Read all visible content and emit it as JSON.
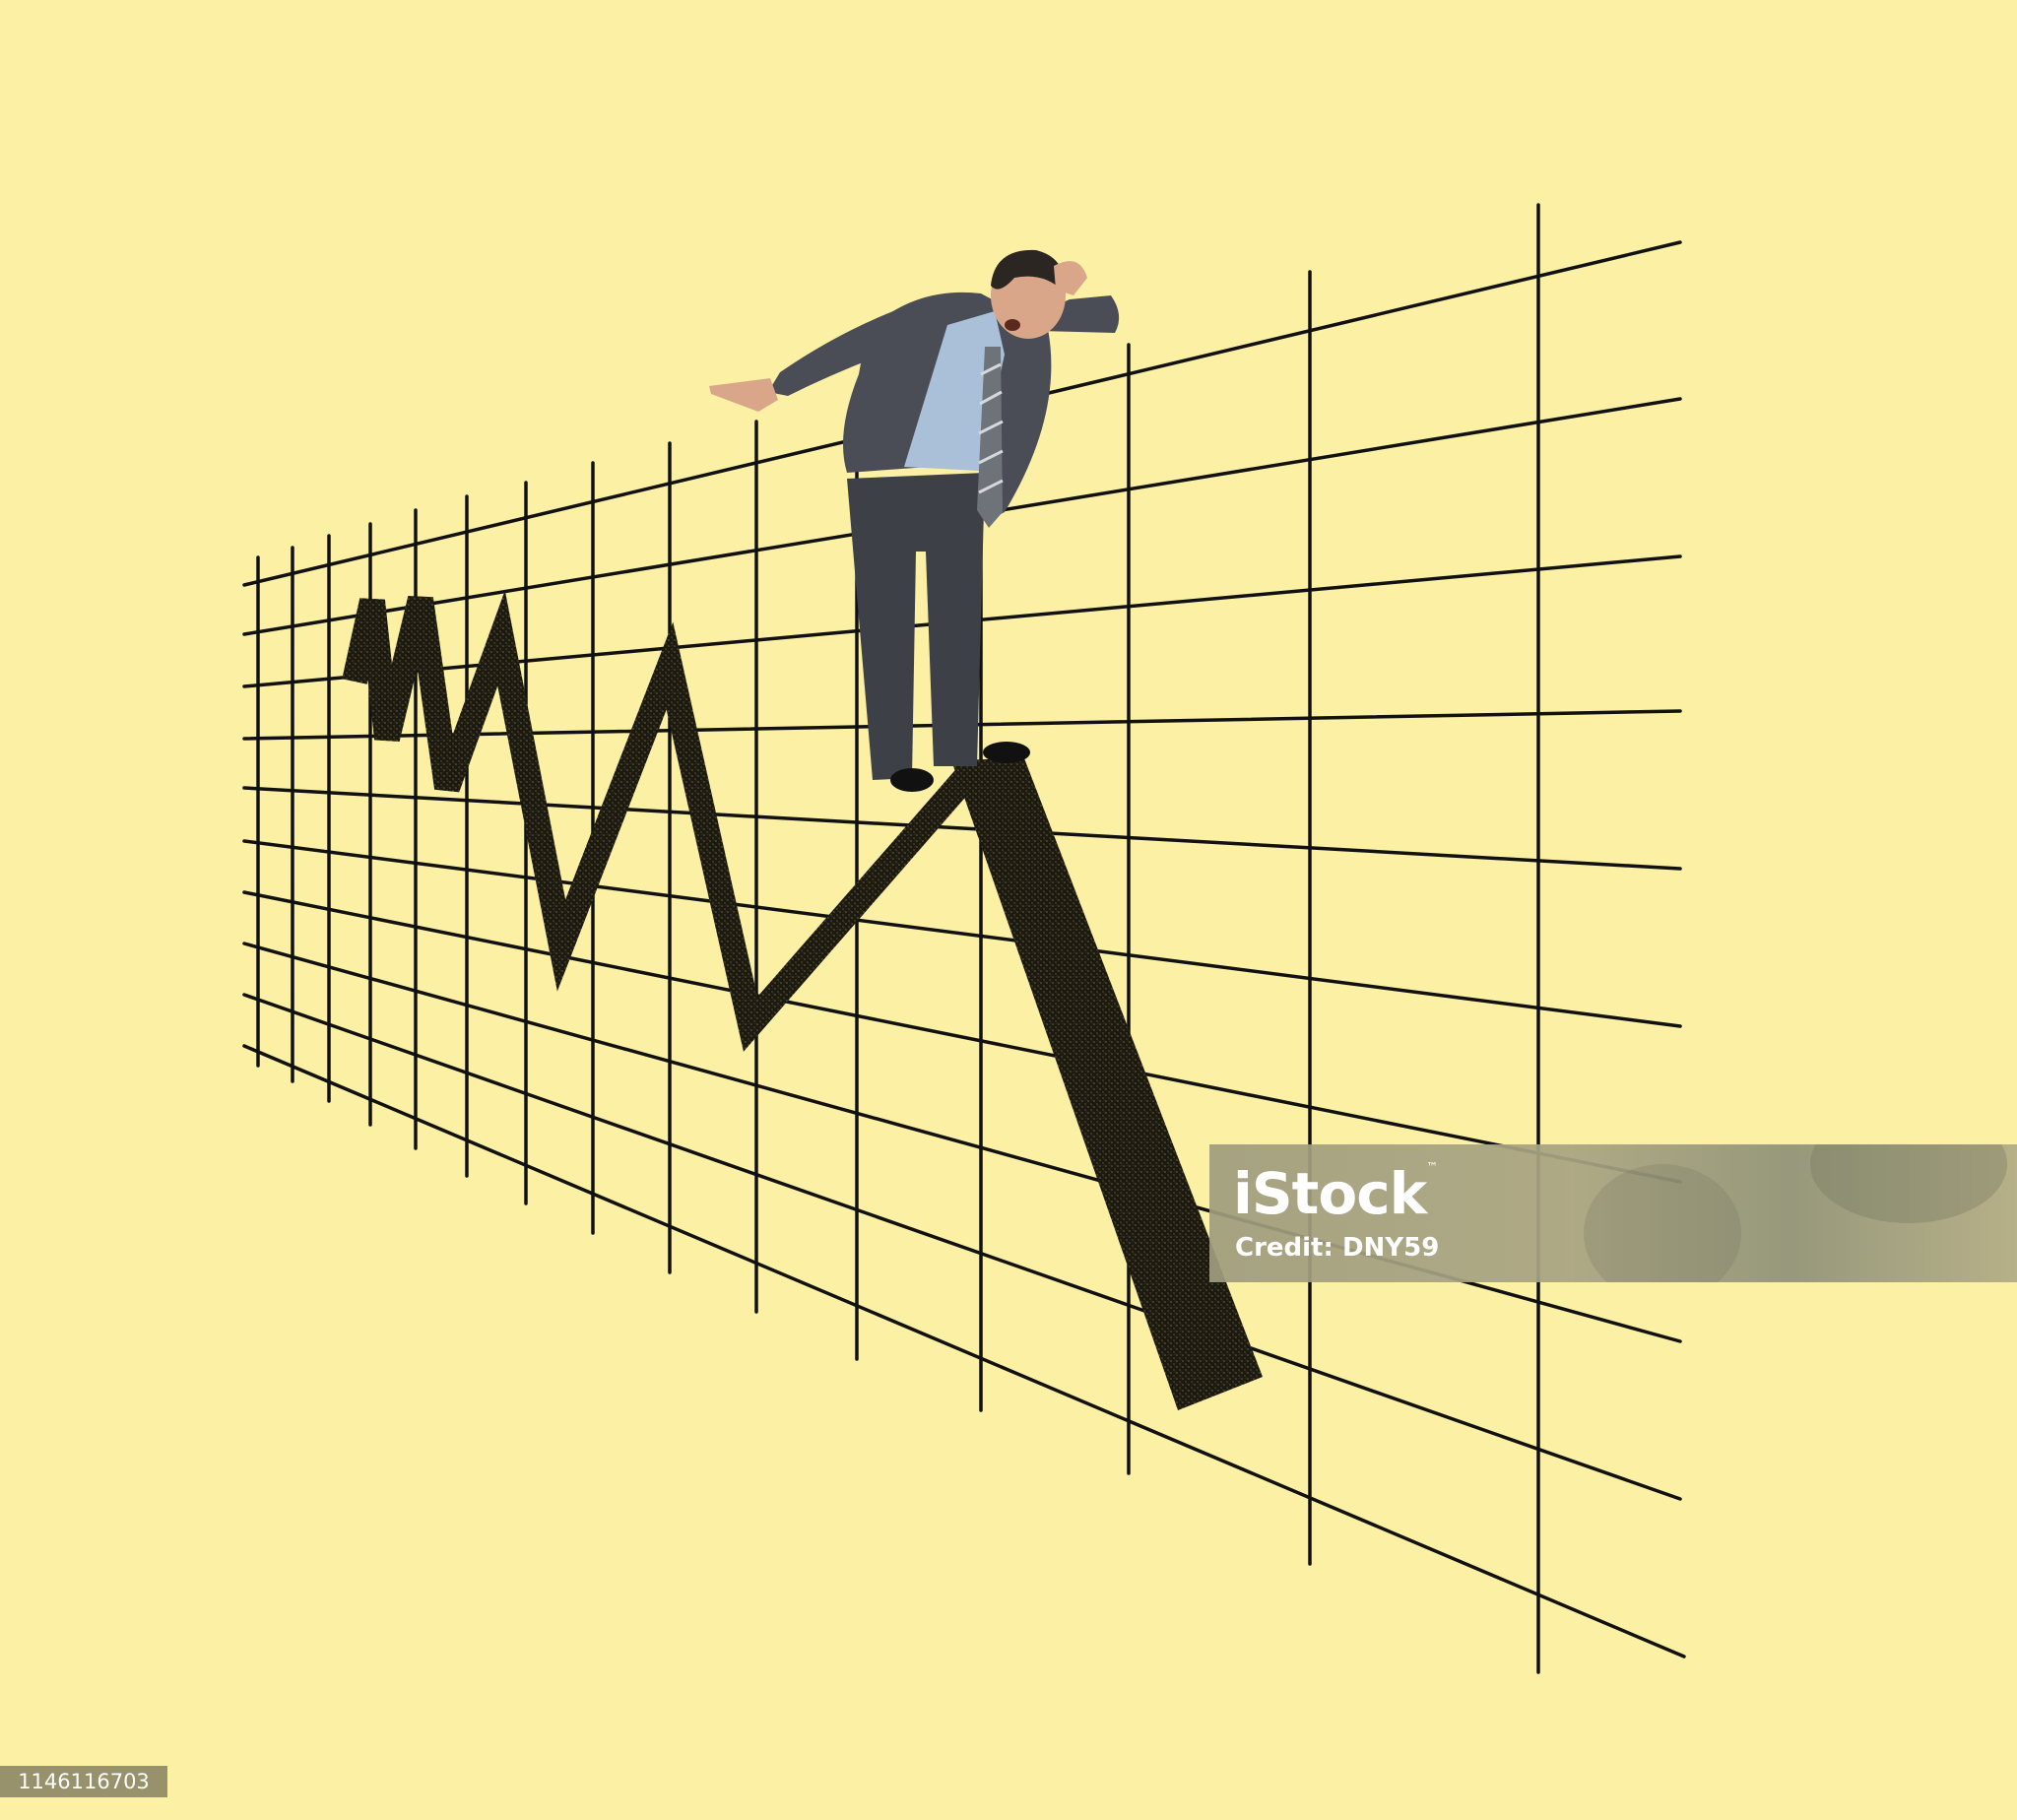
{
  "canvas": {
    "background_color": "#fbf0a4",
    "ink_color": "#111111"
  },
  "scene": {
    "subject": "businessman-balancing-on-stock-chart-line",
    "chart_style": "hand-drawn-perspective-grid-with-zigzag-line"
  },
  "watermark": {
    "logo_text": "iStock",
    "trademark": "™",
    "credit_text": "Credit: DNY59"
  },
  "image_id_label": "1146116703"
}
